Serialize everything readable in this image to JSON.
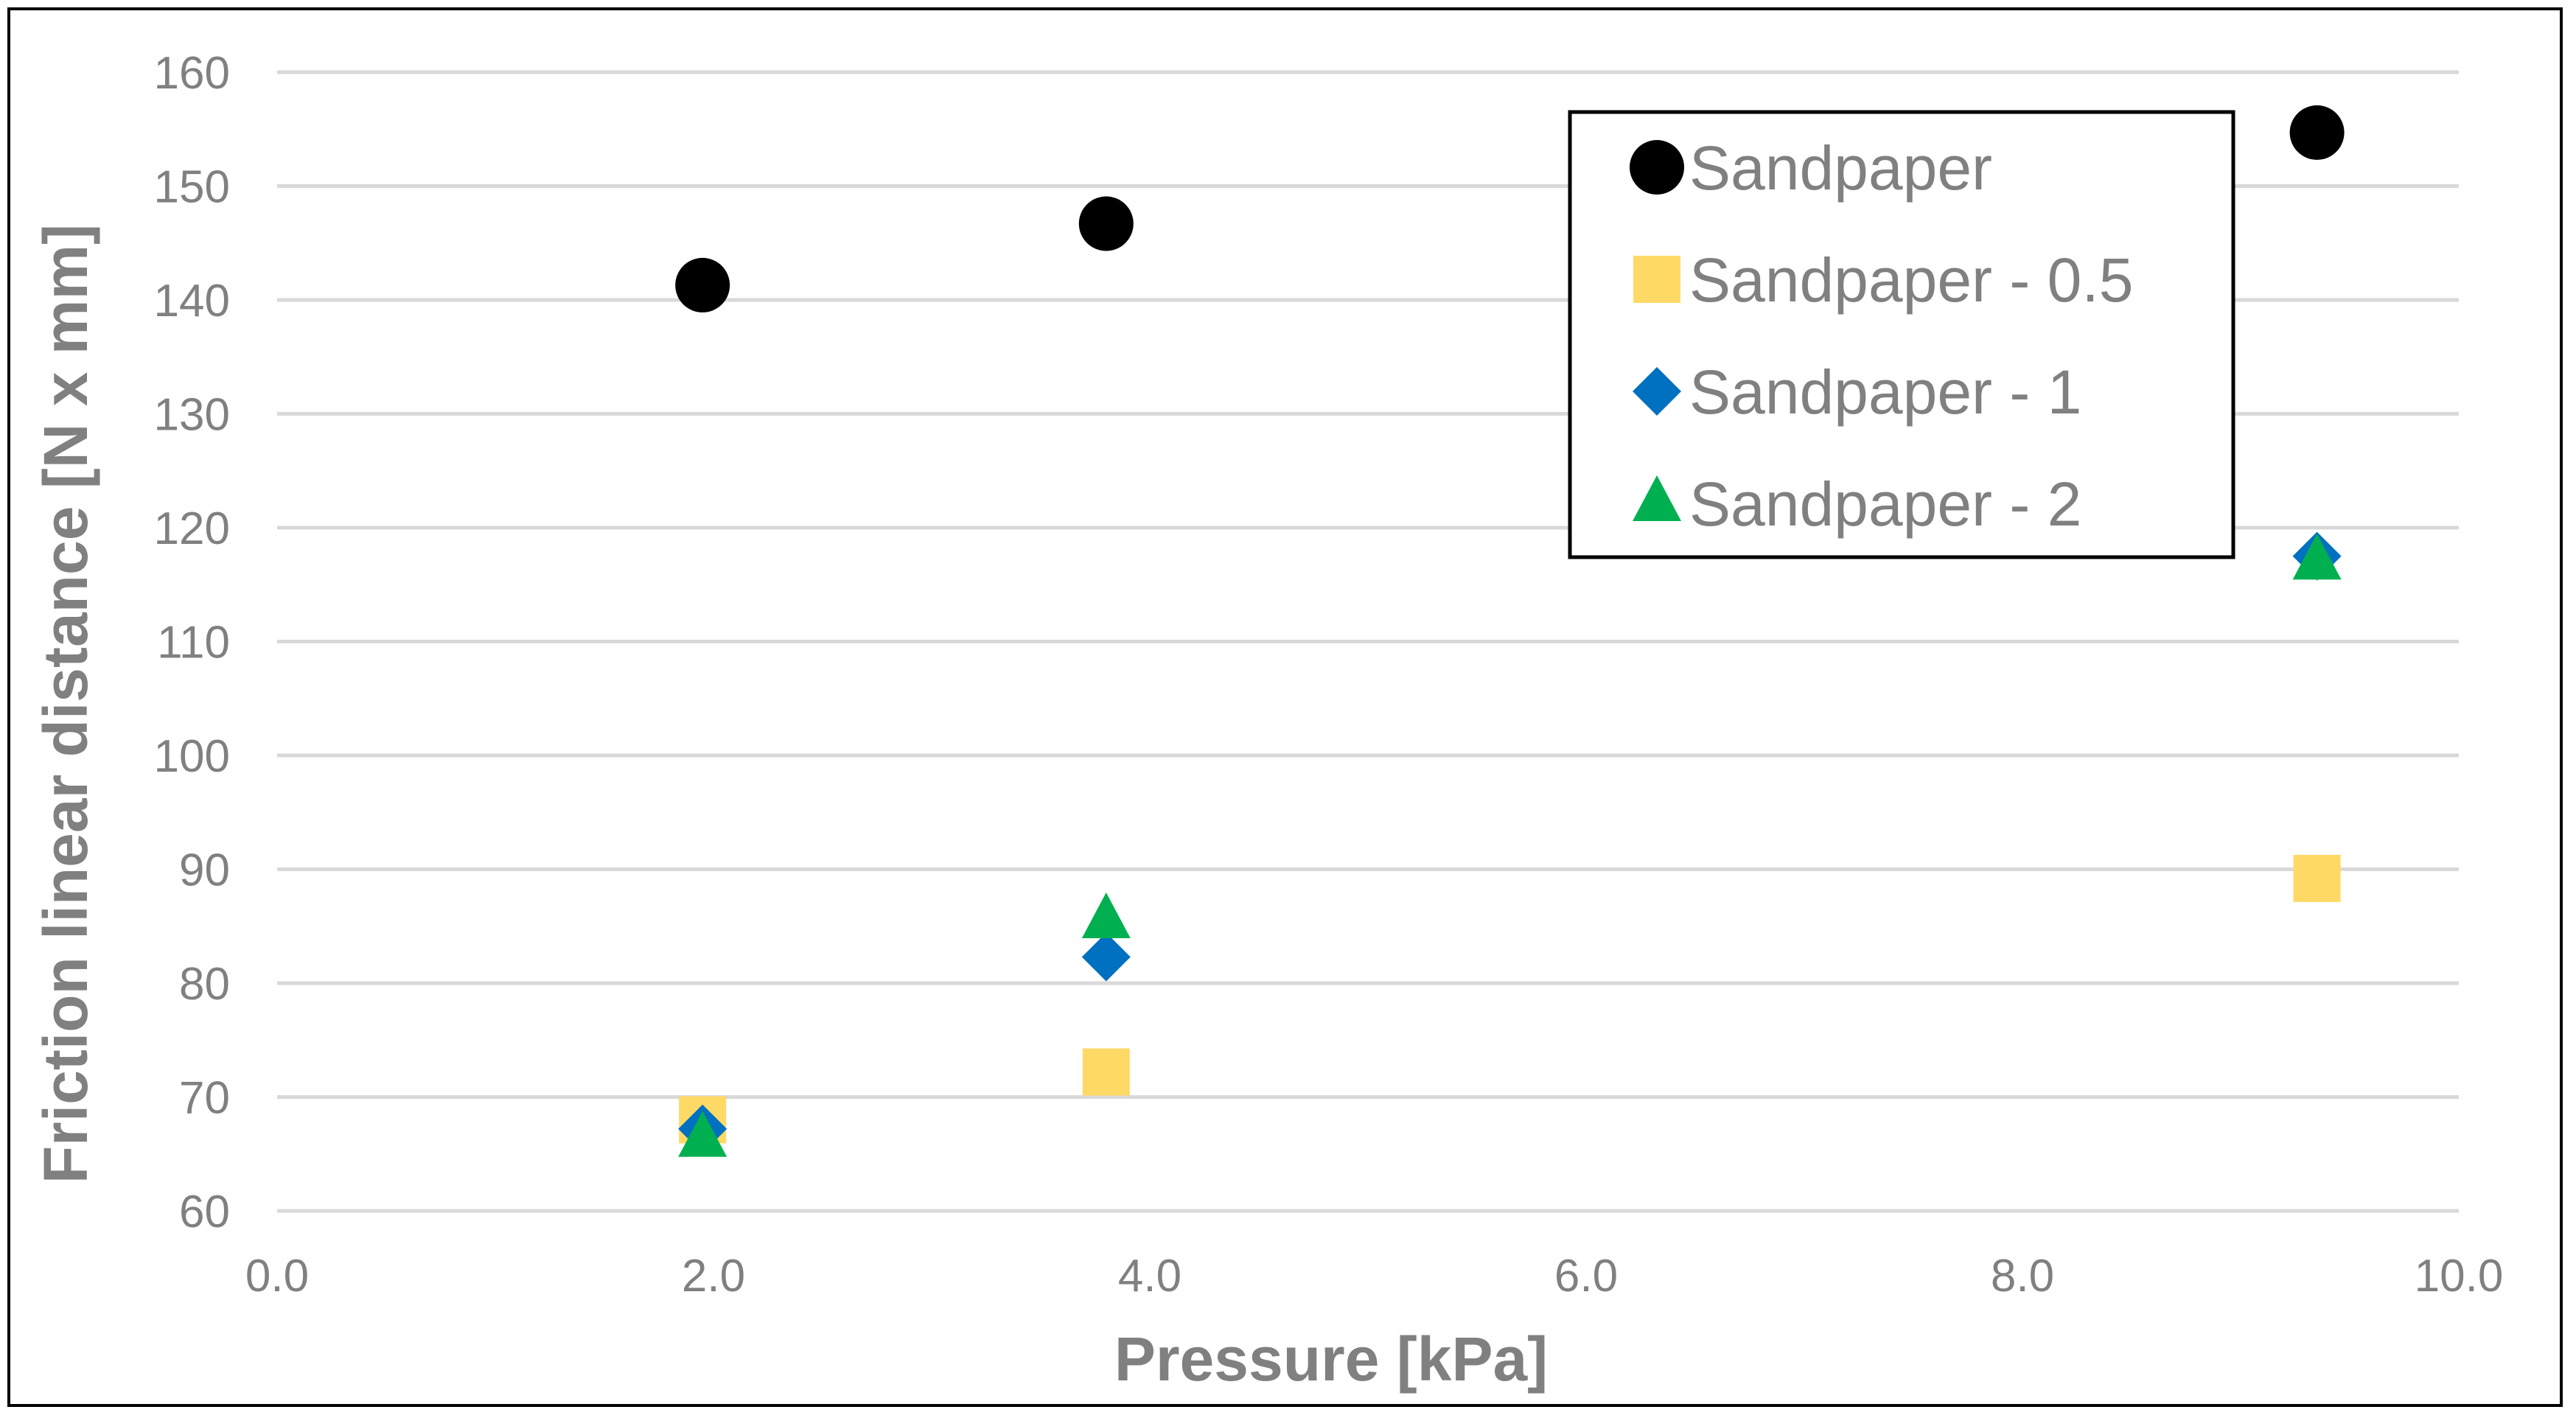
{
  "chart_data": {
    "type": "scatter",
    "title": "",
    "xlabel": "Pressure [kPa]",
    "ylabel": "Friction linear distance [N x mm]",
    "xlim": [
      0,
      10
    ],
    "ylim": [
      60,
      160
    ],
    "x_ticks": [
      "0.0",
      "2.0",
      "4.0",
      "6.0",
      "8.0",
      "10.0"
    ],
    "y_ticks": [
      "60",
      "70",
      "80",
      "90",
      "100",
      "110",
      "120",
      "130",
      "140",
      "150",
      "160"
    ],
    "grid": "horizontal",
    "legend_position": "top-right",
    "series": [
      {
        "name": "Sandpaper",
        "marker": "circle",
        "color": "#000000",
        "points": [
          {
            "x": 1.95,
            "y": 141.3
          },
          {
            "x": 3.8,
            "y": 146.7
          },
          {
            "x": 9.35,
            "y": 154.7
          }
        ]
      },
      {
        "name": "Sandpaper - 0.5",
        "marker": "square",
        "color": "#FFD966",
        "points": [
          {
            "x": 1.95,
            "y": 68.0
          },
          {
            "x": 3.8,
            "y": 72.2
          },
          {
            "x": 9.35,
            "y": 89.2
          }
        ]
      },
      {
        "name": "Sandpaper - 1",
        "marker": "diamond",
        "color": "#0070C0",
        "points": [
          {
            "x": 1.95,
            "y": 67.2
          },
          {
            "x": 3.8,
            "y": 82.3
          },
          {
            "x": 9.35,
            "y": 117.5
          }
        ]
      },
      {
        "name": "Sandpaper - 2",
        "marker": "triangle",
        "color": "#00B050",
        "points": [
          {
            "x": 1.95,
            "y": 66.3
          },
          {
            "x": 3.8,
            "y": 85.5
          },
          {
            "x": 9.35,
            "y": 117.0
          }
        ]
      }
    ]
  }
}
